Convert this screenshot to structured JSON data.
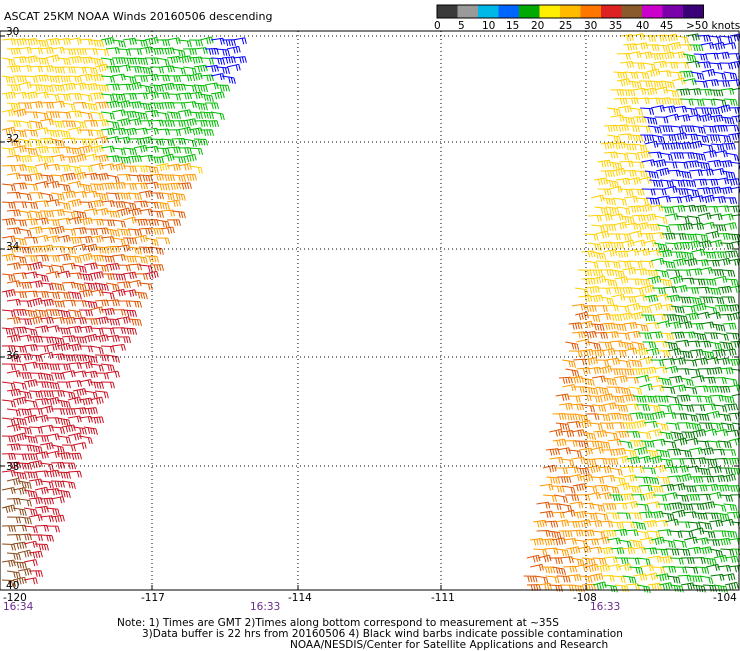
{
  "title": "ASCAT 25KM NOAA Winds 20160506 descending",
  "legend": {
    "labels": [
      "0",
      "5",
      "10",
      "15",
      "20",
      "25",
      "30",
      "35",
      "40",
      "45",
      ">50 knots"
    ],
    "colors": [
      "#3a3a3a",
      "#9a9a9a",
      "#00b8e8",
      "#0066ff",
      "#00aa00",
      "#ffee00",
      "#ffbb00",
      "#ff7700",
      "#dd2222",
      "#8a5a2a",
      "#cc00cc",
      "#7a00aa",
      "#3a0077"
    ]
  },
  "latitudes": [
    "30",
    "32",
    "34",
    "36",
    "38",
    "40"
  ],
  "longitudes": [
    "-120",
    "-117",
    "-114",
    "-111",
    "-108",
    "-104"
  ],
  "pass_times": [
    "16:34",
    "16:33",
    "16:33"
  ],
  "notes": {
    "line1": "Note: 1) Times are GMT 2)Times along bottom correspond to measurement at ~35S",
    "line2": "3)Data buffer is 22 hrs from 20160506 4) Black wind barbs indicate possible contamination",
    "line3": "NOAA/NESDIS/Center for Satellite Applications and Research"
  },
  "swath_colors": {
    "blue": "#0000ff",
    "green": "#00bb00",
    "dark_green": "#007700",
    "yellow": "#ffd000",
    "orange": "#ff9900",
    "dark_orange": "#e05500",
    "red": "#cc1122",
    "brown": "#8a4a1a"
  }
}
